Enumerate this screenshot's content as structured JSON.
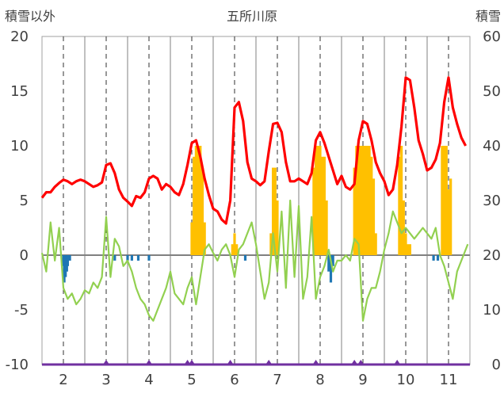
{
  "chart_data": {
    "type": "line",
    "title": "五所川原",
    "ylabel_left": "積雪以外",
    "ylabel_right": "積雪",
    "y_left": {
      "min": -10,
      "max": 20,
      "ticks": [
        20,
        15,
        10,
        5,
        0,
        -5,
        -10
      ]
    },
    "y_right": {
      "min": 0,
      "max": 60,
      "ticks": [
        60,
        50,
        40,
        30,
        20,
        10,
        0
      ]
    },
    "x": {
      "min": 1.5,
      "max": 11.5,
      "ticks": [
        2,
        3,
        4,
        5,
        6,
        7,
        8,
        9,
        10,
        11
      ]
    },
    "grid": "vertical",
    "colors": {
      "red_line": "#ff0000",
      "green_line": "#92d050",
      "orange_bars": "#ffc000",
      "blue_bars": "#1f77b4",
      "purple_line": "#7030a0",
      "zero_line": "#808080"
    },
    "series": [
      {
        "color_key": "red_line",
        "axis": "right",
        "points": [
          [
            1.5,
            30.5
          ],
          [
            1.6,
            31.5
          ],
          [
            1.7,
            31.5
          ],
          [
            1.8,
            32.5
          ],
          [
            1.9,
            33.2
          ],
          [
            2.0,
            33.8
          ],
          [
            2.1,
            33.5
          ],
          [
            2.2,
            33.0
          ],
          [
            2.3,
            33.5
          ],
          [
            2.4,
            33.8
          ],
          [
            2.5,
            33.5
          ],
          [
            2.6,
            33.0
          ],
          [
            2.7,
            32.5
          ],
          [
            2.8,
            32.8
          ],
          [
            2.9,
            33.3
          ],
          [
            3.0,
            36.5
          ],
          [
            3.1,
            36.8
          ],
          [
            3.2,
            35.0
          ],
          [
            3.3,
            32.0
          ],
          [
            3.4,
            30.5
          ],
          [
            3.5,
            29.8
          ],
          [
            3.6,
            29.0
          ],
          [
            3.7,
            30.8
          ],
          [
            3.8,
            30.5
          ],
          [
            3.9,
            31.5
          ],
          [
            4.0,
            34.0
          ],
          [
            4.1,
            34.5
          ],
          [
            4.2,
            34.0
          ],
          [
            4.3,
            32.0
          ],
          [
            4.4,
            33.0
          ],
          [
            4.5,
            32.5
          ],
          [
            4.6,
            31.5
          ],
          [
            4.7,
            31.0
          ],
          [
            4.8,
            33.0
          ],
          [
            4.9,
            36.5
          ],
          [
            5.0,
            40.5
          ],
          [
            5.1,
            41.0
          ],
          [
            5.2,
            38.0
          ],
          [
            5.3,
            34.0
          ],
          [
            5.4,
            31.0
          ],
          [
            5.5,
            28.5
          ],
          [
            5.6,
            28.0
          ],
          [
            5.7,
            26.5
          ],
          [
            5.8,
            25.8
          ],
          [
            5.9,
            30.0
          ],
          [
            6.0,
            47.0
          ],
          [
            6.1,
            48.0
          ],
          [
            6.2,
            44.5
          ],
          [
            6.3,
            37.0
          ],
          [
            6.4,
            34.0
          ],
          [
            6.5,
            33.5
          ],
          [
            6.6,
            32.8
          ],
          [
            6.7,
            33.5
          ],
          [
            6.8,
            39.0
          ],
          [
            6.9,
            44.0
          ],
          [
            7.0,
            44.2
          ],
          [
            7.1,
            42.5
          ],
          [
            7.2,
            37.0
          ],
          [
            7.3,
            33.5
          ],
          [
            7.4,
            33.5
          ],
          [
            7.5,
            34.0
          ],
          [
            7.6,
            33.5
          ],
          [
            7.7,
            33.0
          ],
          [
            7.8,
            35.0
          ],
          [
            7.9,
            41.0
          ],
          [
            8.0,
            42.5
          ],
          [
            8.1,
            40.5
          ],
          [
            8.2,
            38.0
          ],
          [
            8.3,
            35.5
          ],
          [
            8.4,
            33.0
          ],
          [
            8.5,
            34.5
          ],
          [
            8.6,
            32.5
          ],
          [
            8.7,
            32.0
          ],
          [
            8.8,
            33.0
          ],
          [
            8.9,
            41.0
          ],
          [
            9.0,
            44.5
          ],
          [
            9.1,
            44.0
          ],
          [
            9.2,
            41.0
          ],
          [
            9.3,
            37.0
          ],
          [
            9.4,
            35.0
          ],
          [
            9.5,
            33.5
          ],
          [
            9.6,
            31.0
          ],
          [
            9.7,
            32.0
          ],
          [
            9.8,
            36.5
          ],
          [
            9.9,
            43.5
          ],
          [
            10.0,
            52.5
          ],
          [
            10.1,
            52.0
          ],
          [
            10.2,
            47.0
          ],
          [
            10.3,
            41.0
          ],
          [
            10.4,
            38.5
          ],
          [
            10.5,
            35.5
          ],
          [
            10.6,
            36.0
          ],
          [
            10.7,
            37.5
          ],
          [
            10.8,
            40.5
          ],
          [
            10.9,
            48.0
          ],
          [
            11.0,
            52.5
          ],
          [
            11.1,
            47.0
          ],
          [
            11.2,
            44.0
          ],
          [
            11.3,
            41.5
          ],
          [
            11.4,
            40.0
          ]
        ]
      },
      {
        "color_key": "green_line",
        "axis": "left",
        "points": [
          [
            1.5,
            0.2
          ],
          [
            1.6,
            -1.5
          ],
          [
            1.7,
            3.0
          ],
          [
            1.8,
            -0.5
          ],
          [
            1.9,
            2.5
          ],
          [
            2.0,
            -3.0
          ],
          [
            2.1,
            -4.0
          ],
          [
            2.2,
            -3.5
          ],
          [
            2.3,
            -4.5
          ],
          [
            2.4,
            -4.0
          ],
          [
            2.5,
            -3.2
          ],
          [
            2.6,
            -3.5
          ],
          [
            2.7,
            -2.5
          ],
          [
            2.8,
            -3.0
          ],
          [
            2.9,
            -2.0
          ],
          [
            3.0,
            3.5
          ],
          [
            3.1,
            -2.0
          ],
          [
            3.2,
            1.5
          ],
          [
            3.3,
            0.8
          ],
          [
            3.4,
            -1.0
          ],
          [
            3.5,
            -0.5
          ],
          [
            3.6,
            -1.5
          ],
          [
            3.7,
            -3.0
          ],
          [
            3.8,
            -4.0
          ],
          [
            3.9,
            -4.5
          ],
          [
            4.0,
            -5.5
          ],
          [
            4.1,
            -6.0
          ],
          [
            4.2,
            -5.0
          ],
          [
            4.3,
            -4.0
          ],
          [
            4.4,
            -3.0
          ],
          [
            4.5,
            -1.5
          ],
          [
            4.6,
            -3.5
          ],
          [
            4.7,
            -4.0
          ],
          [
            4.8,
            -4.5
          ],
          [
            4.9,
            -3.0
          ],
          [
            5.0,
            -2.0
          ],
          [
            5.1,
            -4.5
          ],
          [
            5.2,
            -2.0
          ],
          [
            5.3,
            0.5
          ],
          [
            5.4,
            1.0
          ],
          [
            5.5,
            0.2
          ],
          [
            5.6,
            -0.5
          ],
          [
            5.7,
            0.5
          ],
          [
            5.8,
            1.0
          ],
          [
            5.9,
            0.0
          ],
          [
            6.0,
            -2.0
          ],
          [
            6.1,
            0.5
          ],
          [
            6.2,
            1.0
          ],
          [
            6.3,
            2.0
          ],
          [
            6.4,
            3.0
          ],
          [
            6.5,
            1.0
          ],
          [
            6.6,
            -1.5
          ],
          [
            6.7,
            -4.0
          ],
          [
            6.8,
            -2.5
          ],
          [
            6.9,
            2.0
          ],
          [
            7.0,
            -1.5
          ],
          [
            7.1,
            4.0
          ],
          [
            7.2,
            -3.0
          ],
          [
            7.3,
            5.0
          ],
          [
            7.4,
            -2.0
          ],
          [
            7.5,
            4.5
          ],
          [
            7.6,
            -4.0
          ],
          [
            7.7,
            -2.0
          ],
          [
            7.8,
            3.5
          ],
          [
            7.9,
            -4.0
          ],
          [
            8.0,
            -2.0
          ],
          [
            8.1,
            -1.0
          ],
          [
            8.2,
            0.5
          ],
          [
            8.3,
            -1.5
          ],
          [
            8.4,
            -0.5
          ],
          [
            8.5,
            -0.5
          ],
          [
            8.6,
            0.0
          ],
          [
            8.7,
            -0.5
          ],
          [
            8.8,
            1.5
          ],
          [
            8.9,
            1.0
          ],
          [
            9.0,
            -6.0
          ],
          [
            9.1,
            -4.0
          ],
          [
            9.2,
            -3.0
          ],
          [
            9.3,
            -3.0
          ],
          [
            9.4,
            -1.5
          ],
          [
            9.5,
            0.5
          ],
          [
            9.6,
            2.0
          ],
          [
            9.7,
            4.0
          ],
          [
            9.8,
            3.0
          ],
          [
            9.9,
            2.0
          ],
          [
            10.0,
            2.5
          ],
          [
            10.1,
            2.0
          ],
          [
            10.2,
            1.5
          ],
          [
            10.3,
            2.0
          ],
          [
            10.4,
            2.5
          ],
          [
            10.5,
            2.0
          ],
          [
            10.6,
            1.5
          ],
          [
            10.7,
            2.5
          ],
          [
            10.8,
            0.0
          ],
          [
            10.9,
            -1.0
          ],
          [
            11.0,
            -2.5
          ],
          [
            11.1,
            -4.0
          ],
          [
            11.2,
            -1.5
          ],
          [
            11.3,
            -0.5
          ],
          [
            11.4,
            0.5
          ],
          [
            11.45,
            1.0
          ]
        ]
      },
      {
        "color_key": "purple_line",
        "axis": "left",
        "points": [
          [
            1.5,
            -10.0
          ],
          [
            11.5,
            -10.0
          ]
        ],
        "bumps": [
          3.0,
          4.0,
          4.9,
          5.0,
          5.9,
          6.8,
          7.9,
          8.8,
          8.95,
          9.8
        ]
      }
    ],
    "bars": [
      {
        "color_key": "orange_bars",
        "axis": "left",
        "values": [
          [
            5.0,
            3
          ],
          [
            5.05,
            9
          ],
          [
            5.1,
            10
          ],
          [
            5.15,
            10
          ],
          [
            5.2,
            10
          ],
          [
            5.25,
            8
          ],
          [
            5.3,
            3
          ],
          [
            5.95,
            1
          ],
          [
            6.0,
            2
          ],
          [
            6.05,
            1
          ],
          [
            6.85,
            2
          ],
          [
            6.9,
            8
          ],
          [
            6.95,
            8
          ],
          [
            7.0,
            5
          ],
          [
            7.85,
            8
          ],
          [
            7.9,
            10
          ],
          [
            7.95,
            10
          ],
          [
            8.0,
            10
          ],
          [
            8.05,
            9
          ],
          [
            8.1,
            9
          ],
          [
            8.15,
            5
          ],
          [
            8.8,
            8
          ],
          [
            8.85,
            10
          ],
          [
            8.9,
            10
          ],
          [
            8.95,
            10
          ],
          [
            9.0,
            10
          ],
          [
            9.05,
            10
          ],
          [
            9.1,
            10
          ],
          [
            9.15,
            10
          ],
          [
            9.2,
            9
          ],
          [
            9.25,
            7
          ],
          [
            9.3,
            2
          ],
          [
            9.85,
            9
          ],
          [
            9.9,
            10
          ],
          [
            9.95,
            5
          ],
          [
            10.0,
            2
          ],
          [
            10.05,
            1
          ],
          [
            10.1,
            1
          ],
          [
            10.85,
            10
          ],
          [
            10.9,
            10
          ],
          [
            10.95,
            10
          ],
          [
            11.0,
            6
          ],
          [
            11.05,
            7
          ]
        ]
      },
      {
        "color_key": "blue_bars",
        "axis": "left",
        "values": [
          [
            2.0,
            -1.0
          ],
          [
            2.02,
            -2.5
          ],
          [
            2.05,
            -2.0
          ],
          [
            2.08,
            -1.5
          ],
          [
            2.1,
            -1.0
          ],
          [
            2.15,
            -0.5
          ],
          [
            3.2,
            -0.5
          ],
          [
            3.5,
            -0.5
          ],
          [
            3.6,
            -0.5
          ],
          [
            3.75,
            -0.5
          ],
          [
            4.0,
            -0.5
          ],
          [
            6.25,
            -0.5
          ],
          [
            8.2,
            -1.5
          ],
          [
            8.25,
            -2.5
          ],
          [
            8.3,
            -1.0
          ],
          [
            10.65,
            -0.5
          ],
          [
            10.75,
            -0.5
          ]
        ]
      }
    ]
  }
}
